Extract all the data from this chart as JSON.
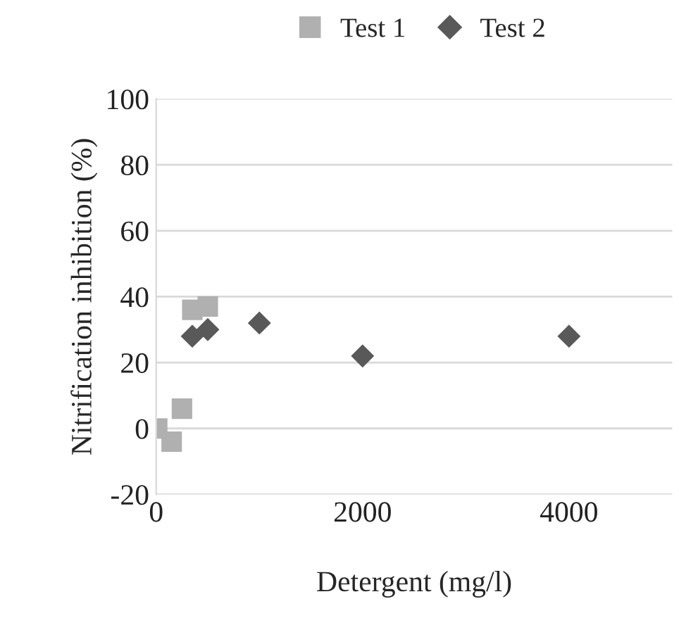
{
  "chart_data": {
    "type": "scatter",
    "xlabel": "Detergent (mg/l)",
    "ylabel": "Nitrification inhibition (%)",
    "xlim": [
      0,
      5000
    ],
    "xticks": [
      0,
      2000,
      4000
    ],
    "ylim": [
      -20,
      100
    ],
    "yticks": [
      -20,
      0,
      20,
      40,
      60,
      80,
      100
    ],
    "grid": "y",
    "legend": "top",
    "series": [
      {
        "name": "Test 1",
        "color": "#b0b0b0",
        "marker": "square",
        "x": [
          10,
          150,
          250,
          350,
          500
        ],
        "values": [
          0,
          -4,
          6,
          36,
          37
        ]
      },
      {
        "name": "Test 2",
        "color": "#595959",
        "marker": "diamond",
        "x": [
          350,
          500,
          1000,
          2000,
          4000
        ],
        "values": [
          28,
          30,
          32,
          22,
          28
        ]
      }
    ]
  }
}
